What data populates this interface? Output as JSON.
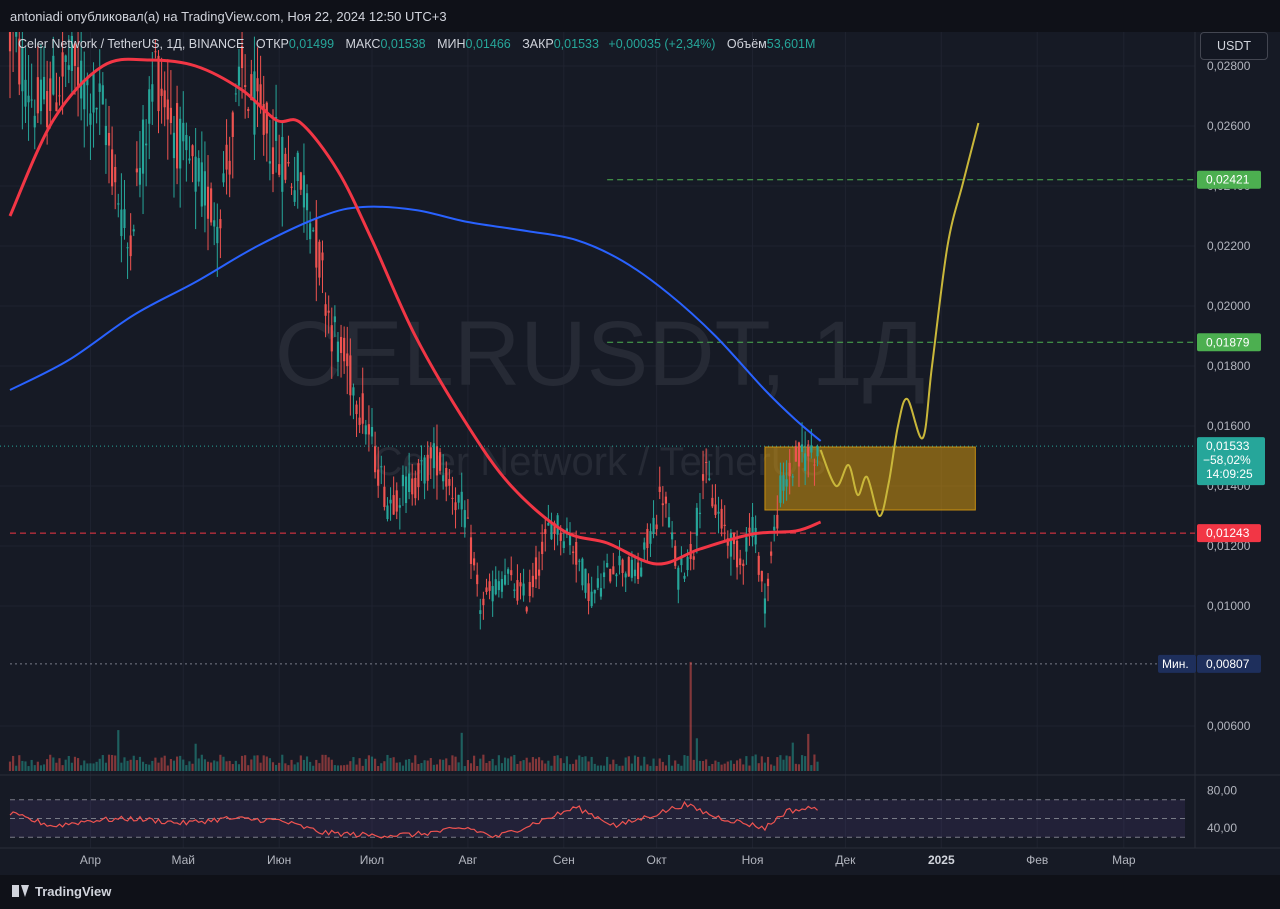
{
  "header": {
    "published_text": "antoniadi опубликовал(а) на TradingView.com, Ноя 22, 2024 12:50 UTC+3"
  },
  "legend": {
    "symbol": "Celer Network / TetherUS, 1Д, BINANCE",
    "open_label": "ОТКР",
    "open_value": "0,01499",
    "high_label": "МАКС",
    "high_value": "0,01538",
    "low_label": "МИН",
    "low_value": "0,01466",
    "close_label": "ЗАКР",
    "close_value": "0,01533",
    "change": "+0,00035 (+2,34%)",
    "volume_label": "Объём",
    "volume_value": "53,601M"
  },
  "currency_button": "USDT",
  "watermark": {
    "ticker": "CELRUSDT, 1Д",
    "name": "Celer Network / TetherUS"
  },
  "footer": {
    "brand": "TradingView",
    "brand_icon": "tradingview-logo-icon"
  },
  "colors": {
    "up": "#26a69a",
    "down": "#ef5350",
    "ma_red": "#f23645",
    "ma_blue": "#2962ff",
    "projection": "#c9b73a",
    "zone": "#d4980f",
    "level_green": "#4caf50",
    "level_red": "#f23645",
    "rsi": "#ef5350"
  },
  "chart_data": {
    "type": "candlestick",
    "price_axis": {
      "ticks": [
        "0,02800",
        "0,02600",
        "0,02400",
        "0,02200",
        "0,02000",
        "0,01800",
        "0,01600",
        "0,01400",
        "0,01200",
        "0,01000",
        "0,00600"
      ],
      "range": [
        0.0052,
        0.0289
      ]
    },
    "time_axis": {
      "labels": [
        "Апр",
        "Май",
        "Июн",
        "Июл",
        "Авг",
        "Сен",
        "Окт",
        "Ноя",
        "Дек",
        "2025",
        "Фев",
        "Мар"
      ],
      "start": "2024-03-06",
      "end": "2025-03-24"
    },
    "levels": [
      {
        "value": 0.02421,
        "label": "0,02421",
        "color": "#4caf50",
        "style": "dashed",
        "from": "2024-09-15"
      },
      {
        "value": 0.01879,
        "label": "0,01879",
        "color": "#4caf50",
        "style": "dashed",
        "from": "2024-09-15"
      },
      {
        "value": 0.01243,
        "label": "0,01243",
        "color": "#f23645",
        "style": "dashed",
        "from": "2024-03-06"
      },
      {
        "value": 0.00807,
        "label": "0,00807",
        "prefix": "Мин.",
        "color": "#1e2f5c",
        "style": "dotted",
        "from": "2024-03-06"
      }
    ],
    "last_price": {
      "value": 0.01533,
      "label": "0,01533",
      "change_pct": "−58,02%",
      "countdown": "14:09:25"
    },
    "zone": {
      "from": "2024-11-05",
      "to": "2025-01-12",
      "top": 0.0153,
      "bottom": 0.0132
    },
    "anchors": [
      {
        "date": "2024-03-06",
        "open": 0.034,
        "close": 0.029
      },
      {
        "date": "2024-03-15",
        "open": 0.029,
        "close": 0.0265
      },
      {
        "date": "2024-03-25",
        "open": 0.0265,
        "close": 0.028
      },
      {
        "date": "2024-04-05",
        "open": 0.028,
        "close": 0.0265
      },
      {
        "date": "2024-04-13",
        "open": 0.0265,
        "close": 0.022
      },
      {
        "date": "2024-04-22",
        "open": 0.022,
        "close": 0.028
      },
      {
        "date": "2024-05-01",
        "open": 0.028,
        "close": 0.025
      },
      {
        "date": "2024-05-12",
        "open": 0.025,
        "close": 0.023
      },
      {
        "date": "2024-05-20",
        "open": 0.023,
        "close": 0.0275
      },
      {
        "date": "2024-06-01",
        "open": 0.0275,
        "close": 0.025
      },
      {
        "date": "2024-06-10",
        "open": 0.025,
        "close": 0.0238
      },
      {
        "date": "2024-06-18",
        "open": 0.0238,
        "close": 0.0193
      },
      {
        "date": "2024-06-28",
        "open": 0.0193,
        "close": 0.0165
      },
      {
        "date": "2024-07-06",
        "open": 0.0165,
        "close": 0.0135
      },
      {
        "date": "2024-07-15",
        "open": 0.0135,
        "close": 0.0142
      },
      {
        "date": "2024-07-22",
        "open": 0.0142,
        "close": 0.015
      },
      {
        "date": "2024-07-31",
        "open": 0.015,
        "close": 0.013
      },
      {
        "date": "2024-08-05",
        "open": 0.013,
        "close": 0.01
      },
      {
        "date": "2024-08-13",
        "open": 0.01,
        "close": 0.011
      },
      {
        "date": "2024-08-20",
        "open": 0.011,
        "close": 0.0102
      },
      {
        "date": "2024-08-28",
        "open": 0.0102,
        "close": 0.0128
      },
      {
        "date": "2024-09-03",
        "open": 0.0128,
        "close": 0.0123
      },
      {
        "date": "2024-09-10",
        "open": 0.0123,
        "close": 0.0103
      },
      {
        "date": "2024-09-18",
        "open": 0.0103,
        "close": 0.0115
      },
      {
        "date": "2024-09-25",
        "open": 0.0115,
        "close": 0.011
      },
      {
        "date": "2024-10-03",
        "open": 0.011,
        "close": 0.0138
      },
      {
        "date": "2024-10-08",
        "open": 0.0138,
        "close": 0.011
      },
      {
        "date": "2024-10-13",
        "open": 0.011,
        "close": 0.012
      },
      {
        "date": "2024-10-16",
        "open": 0.012,
        "close": 0.0145
      },
      {
        "date": "2024-10-21",
        "open": 0.0145,
        "close": 0.013
      },
      {
        "date": "2024-10-28",
        "open": 0.013,
        "close": 0.0115
      },
      {
        "date": "2024-11-01",
        "open": 0.0115,
        "close": 0.0128
      },
      {
        "date": "2024-11-05",
        "open": 0.0128,
        "close": 0.0102
      },
      {
        "date": "2024-11-10",
        "open": 0.0102,
        "close": 0.0138
      },
      {
        "date": "2024-11-15",
        "open": 0.0138,
        "close": 0.0148
      },
      {
        "date": "2024-11-22",
        "open": 0.0148,
        "close": 0.01533
      }
    ],
    "volume": {
      "axis_max": 110,
      "spikes": [
        {
          "date": "2024-04-10",
          "value": 75
        },
        {
          "date": "2024-05-05",
          "value": 50
        },
        {
          "date": "2024-07-30",
          "value": 70
        },
        {
          "date": "2024-10-12",
          "value": 200
        },
        {
          "date": "2024-10-14",
          "value": 60
        },
        {
          "date": "2024-11-19",
          "value": 68
        },
        {
          "date": "2024-11-14",
          "value": 52
        }
      ],
      "base": 18
    },
    "ma_red": [
      {
        "date": "2024-03-06",
        "value": 0.023
      },
      {
        "date": "2024-03-20",
        "value": 0.0262
      },
      {
        "date": "2024-04-05",
        "value": 0.028
      },
      {
        "date": "2024-04-20",
        "value": 0.0282
      },
      {
        "date": "2024-05-05",
        "value": 0.028
      },
      {
        "date": "2024-05-20",
        "value": 0.0272
      },
      {
        "date": "2024-05-31",
        "value": 0.0262
      },
      {
        "date": "2024-06-08",
        "value": 0.0261
      },
      {
        "date": "2024-06-20",
        "value": 0.0245
      },
      {
        "date": "2024-07-01",
        "value": 0.0222
      },
      {
        "date": "2024-07-15",
        "value": 0.019
      },
      {
        "date": "2024-08-01",
        "value": 0.016
      },
      {
        "date": "2024-08-15",
        "value": 0.014
      },
      {
        "date": "2024-09-01",
        "value": 0.0125
      },
      {
        "date": "2024-09-15",
        "value": 0.0121
      },
      {
        "date": "2024-10-01",
        "value": 0.0114
      },
      {
        "date": "2024-10-15",
        "value": 0.0119
      },
      {
        "date": "2024-11-01",
        "value": 0.0124
      },
      {
        "date": "2024-11-15",
        "value": 0.0125
      },
      {
        "date": "2024-11-23",
        "value": 0.0128
      }
    ],
    "ma_blue": [
      {
        "date": "2024-03-06",
        "value": 0.0172
      },
      {
        "date": "2024-03-25",
        "value": 0.0182
      },
      {
        "date": "2024-04-15",
        "value": 0.0197
      },
      {
        "date": "2024-05-05",
        "value": 0.0208
      },
      {
        "date": "2024-05-25",
        "value": 0.022
      },
      {
        "date": "2024-06-15",
        "value": 0.023
      },
      {
        "date": "2024-06-28",
        "value": 0.0233
      },
      {
        "date": "2024-07-15",
        "value": 0.0232
      },
      {
        "date": "2024-08-01",
        "value": 0.0228
      },
      {
        "date": "2024-08-20",
        "value": 0.0225
      },
      {
        "date": "2024-09-05",
        "value": 0.0222
      },
      {
        "date": "2024-09-20",
        "value": 0.0215
      },
      {
        "date": "2024-10-05",
        "value": 0.0204
      },
      {
        "date": "2024-10-20",
        "value": 0.019
      },
      {
        "date": "2024-11-05",
        "value": 0.0172
      },
      {
        "date": "2024-11-15",
        "value": 0.0162
      },
      {
        "date": "2024-11-23",
        "value": 0.0155
      }
    ],
    "projection": [
      {
        "date": "2024-11-23",
        "value": 0.0152
      },
      {
        "date": "2024-11-28",
        "value": 0.014
      },
      {
        "date": "2024-12-02",
        "value": 0.0147
      },
      {
        "date": "2024-12-05",
        "value": 0.0137
      },
      {
        "date": "2024-12-08",
        "value": 0.0143
      },
      {
        "date": "2024-12-12",
        "value": 0.013
      },
      {
        "date": "2024-12-15",
        "value": 0.0141
      },
      {
        "date": "2024-12-18",
        "value": 0.016
      },
      {
        "date": "2024-12-21",
        "value": 0.0169
      },
      {
        "date": "2024-12-26",
        "value": 0.0156
      },
      {
        "date": "2024-12-29",
        "value": 0.018
      },
      {
        "date": "2025-01-03",
        "value": 0.022
      },
      {
        "date": "2025-01-08",
        "value": 0.0241
      },
      {
        "date": "2025-01-13",
        "value": 0.0261
      }
    ],
    "rsi": {
      "ticks": [
        "80,00",
        "40,00"
      ],
      "range": [
        25,
        90
      ],
      "upper": 70,
      "mid": 50,
      "lower": 30,
      "points": [
        {
          "date": "2024-03-06",
          "value": 55
        },
        {
          "date": "2024-03-20",
          "value": 42
        },
        {
          "date": "2024-04-01",
          "value": 48
        },
        {
          "date": "2024-04-15",
          "value": 50
        },
        {
          "date": "2024-05-01",
          "value": 45
        },
        {
          "date": "2024-05-15",
          "value": 50
        },
        {
          "date": "2024-06-01",
          "value": 48
        },
        {
          "date": "2024-06-15",
          "value": 35
        },
        {
          "date": "2024-07-01",
          "value": 32
        },
        {
          "date": "2024-07-15",
          "value": 33
        },
        {
          "date": "2024-08-01",
          "value": 40
        },
        {
          "date": "2024-08-10",
          "value": 30
        },
        {
          "date": "2024-08-25",
          "value": 48
        },
        {
          "date": "2024-09-05",
          "value": 62
        },
        {
          "date": "2024-09-18",
          "value": 42
        },
        {
          "date": "2024-10-01",
          "value": 55
        },
        {
          "date": "2024-10-10",
          "value": 65
        },
        {
          "date": "2024-10-20",
          "value": 52
        },
        {
          "date": "2024-11-05",
          "value": 40
        },
        {
          "date": "2024-11-12",
          "value": 58
        },
        {
          "date": "2024-11-23",
          "value": 62
        }
      ]
    }
  }
}
